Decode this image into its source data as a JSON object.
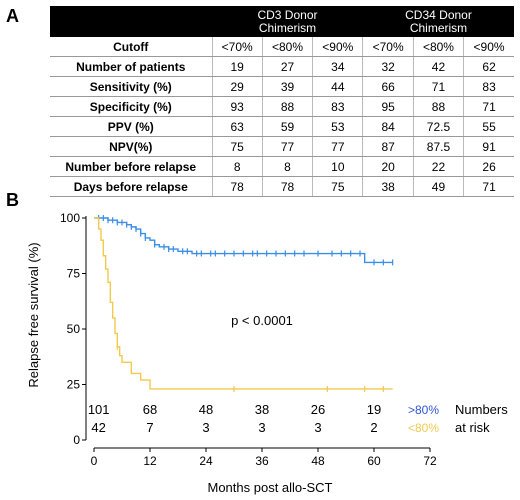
{
  "panel_a": {
    "label": "A",
    "group_headers": [
      "CD3 Donor\nChimerism",
      "CD34 Donor\nChimerism"
    ],
    "columns": [
      "<70%",
      "<80%",
      "<90%",
      "<70%",
      "<80%",
      "<90%"
    ],
    "rows": [
      {
        "label": "Cutoff",
        "values": [
          "<70%",
          "<80%",
          "<90%",
          "<70%",
          "<80%",
          "<90%"
        ]
      },
      {
        "label": "Number of patients",
        "values": [
          "19",
          "27",
          "34",
          "32",
          "42",
          "62"
        ]
      },
      {
        "label": "Sensitivity (%)",
        "values": [
          "29",
          "39",
          "44",
          "66",
          "71",
          "83"
        ]
      },
      {
        "label": "Specificity (%)",
        "values": [
          "93",
          "88",
          "83",
          "95",
          "88",
          "71"
        ]
      },
      {
        "label": "PPV (%)",
        "values": [
          "63",
          "59",
          "53",
          "84",
          "72.5",
          "55"
        ]
      },
      {
        "label": "NPV(%)",
        "values": [
          "75",
          "77",
          "77",
          "87",
          "87.5",
          "91"
        ]
      },
      {
        "label": "Number before relapse",
        "values": [
          "8",
          "8",
          "10",
          "20",
          "22",
          "26"
        ]
      },
      {
        "label": "Days before relapse",
        "values": [
          "78",
          "78",
          "75",
          "38",
          "49",
          "71"
        ]
      }
    ]
  },
  "panel_b": {
    "label": "B",
    "annotation": "p < 0.0001",
    "risk_title_line1": "Numbers",
    "risk_title_line2": "at risk"
  },
  "chart_data": {
    "type": "line",
    "subtype": "kaplan-meier",
    "xlabel": "Months post allo-SCT",
    "ylabel": "Relapse free survival (%)",
    "xlim": [
      0,
      72
    ],
    "ylim": [
      0,
      100
    ],
    "xticks": [
      0,
      12,
      24,
      36,
      48,
      60,
      72
    ],
    "yticks": [
      0,
      25,
      50,
      75,
      100
    ],
    "grid": false,
    "series": [
      {
        "name": ">80%",
        "color": "#3a8ee6",
        "steps": [
          [
            0,
            100
          ],
          [
            3,
            99
          ],
          [
            5,
            98
          ],
          [
            7,
            97
          ],
          [
            8,
            96
          ],
          [
            9,
            95
          ],
          [
            10,
            93
          ],
          [
            11,
            91
          ],
          [
            12,
            90
          ],
          [
            13,
            88
          ],
          [
            14,
            87
          ],
          [
            16,
            86
          ],
          [
            18,
            85
          ],
          [
            21,
            84
          ],
          [
            57,
            84
          ],
          [
            58,
            80
          ],
          [
            64,
            80
          ]
        ],
        "censored": [
          1,
          2,
          3,
          4,
          5,
          6,
          7,
          8,
          9,
          10,
          11,
          13,
          15,
          16,
          17,
          19,
          20,
          22,
          23,
          25,
          26,
          28,
          30,
          32,
          34,
          35,
          37,
          39,
          41,
          43,
          45,
          48,
          51,
          53,
          55,
          57,
          60,
          62,
          64
        ],
        "numbers_at_risk": [
          101,
          68,
          48,
          38,
          26,
          19
        ]
      },
      {
        "name": "<80%",
        "color": "#f2c94c",
        "steps": [
          [
            0,
            100
          ],
          [
            1,
            95
          ],
          [
            1.5,
            90
          ],
          [
            2,
            83
          ],
          [
            2.5,
            77
          ],
          [
            3,
            71
          ],
          [
            3.5,
            62
          ],
          [
            4,
            55
          ],
          [
            4.5,
            48
          ],
          [
            5,
            42
          ],
          [
            5.5,
            38
          ],
          [
            6,
            35
          ],
          [
            8,
            30
          ],
          [
            10,
            27
          ],
          [
            12,
            23
          ],
          [
            64,
            23
          ]
        ],
        "censored": [
          5,
          30,
          50,
          58,
          62
        ],
        "numbers_at_risk": [
          42,
          7,
          3,
          3,
          3,
          2
        ]
      }
    ],
    "risk_times": [
      1,
      12,
      24,
      36,
      48,
      60
    ]
  }
}
